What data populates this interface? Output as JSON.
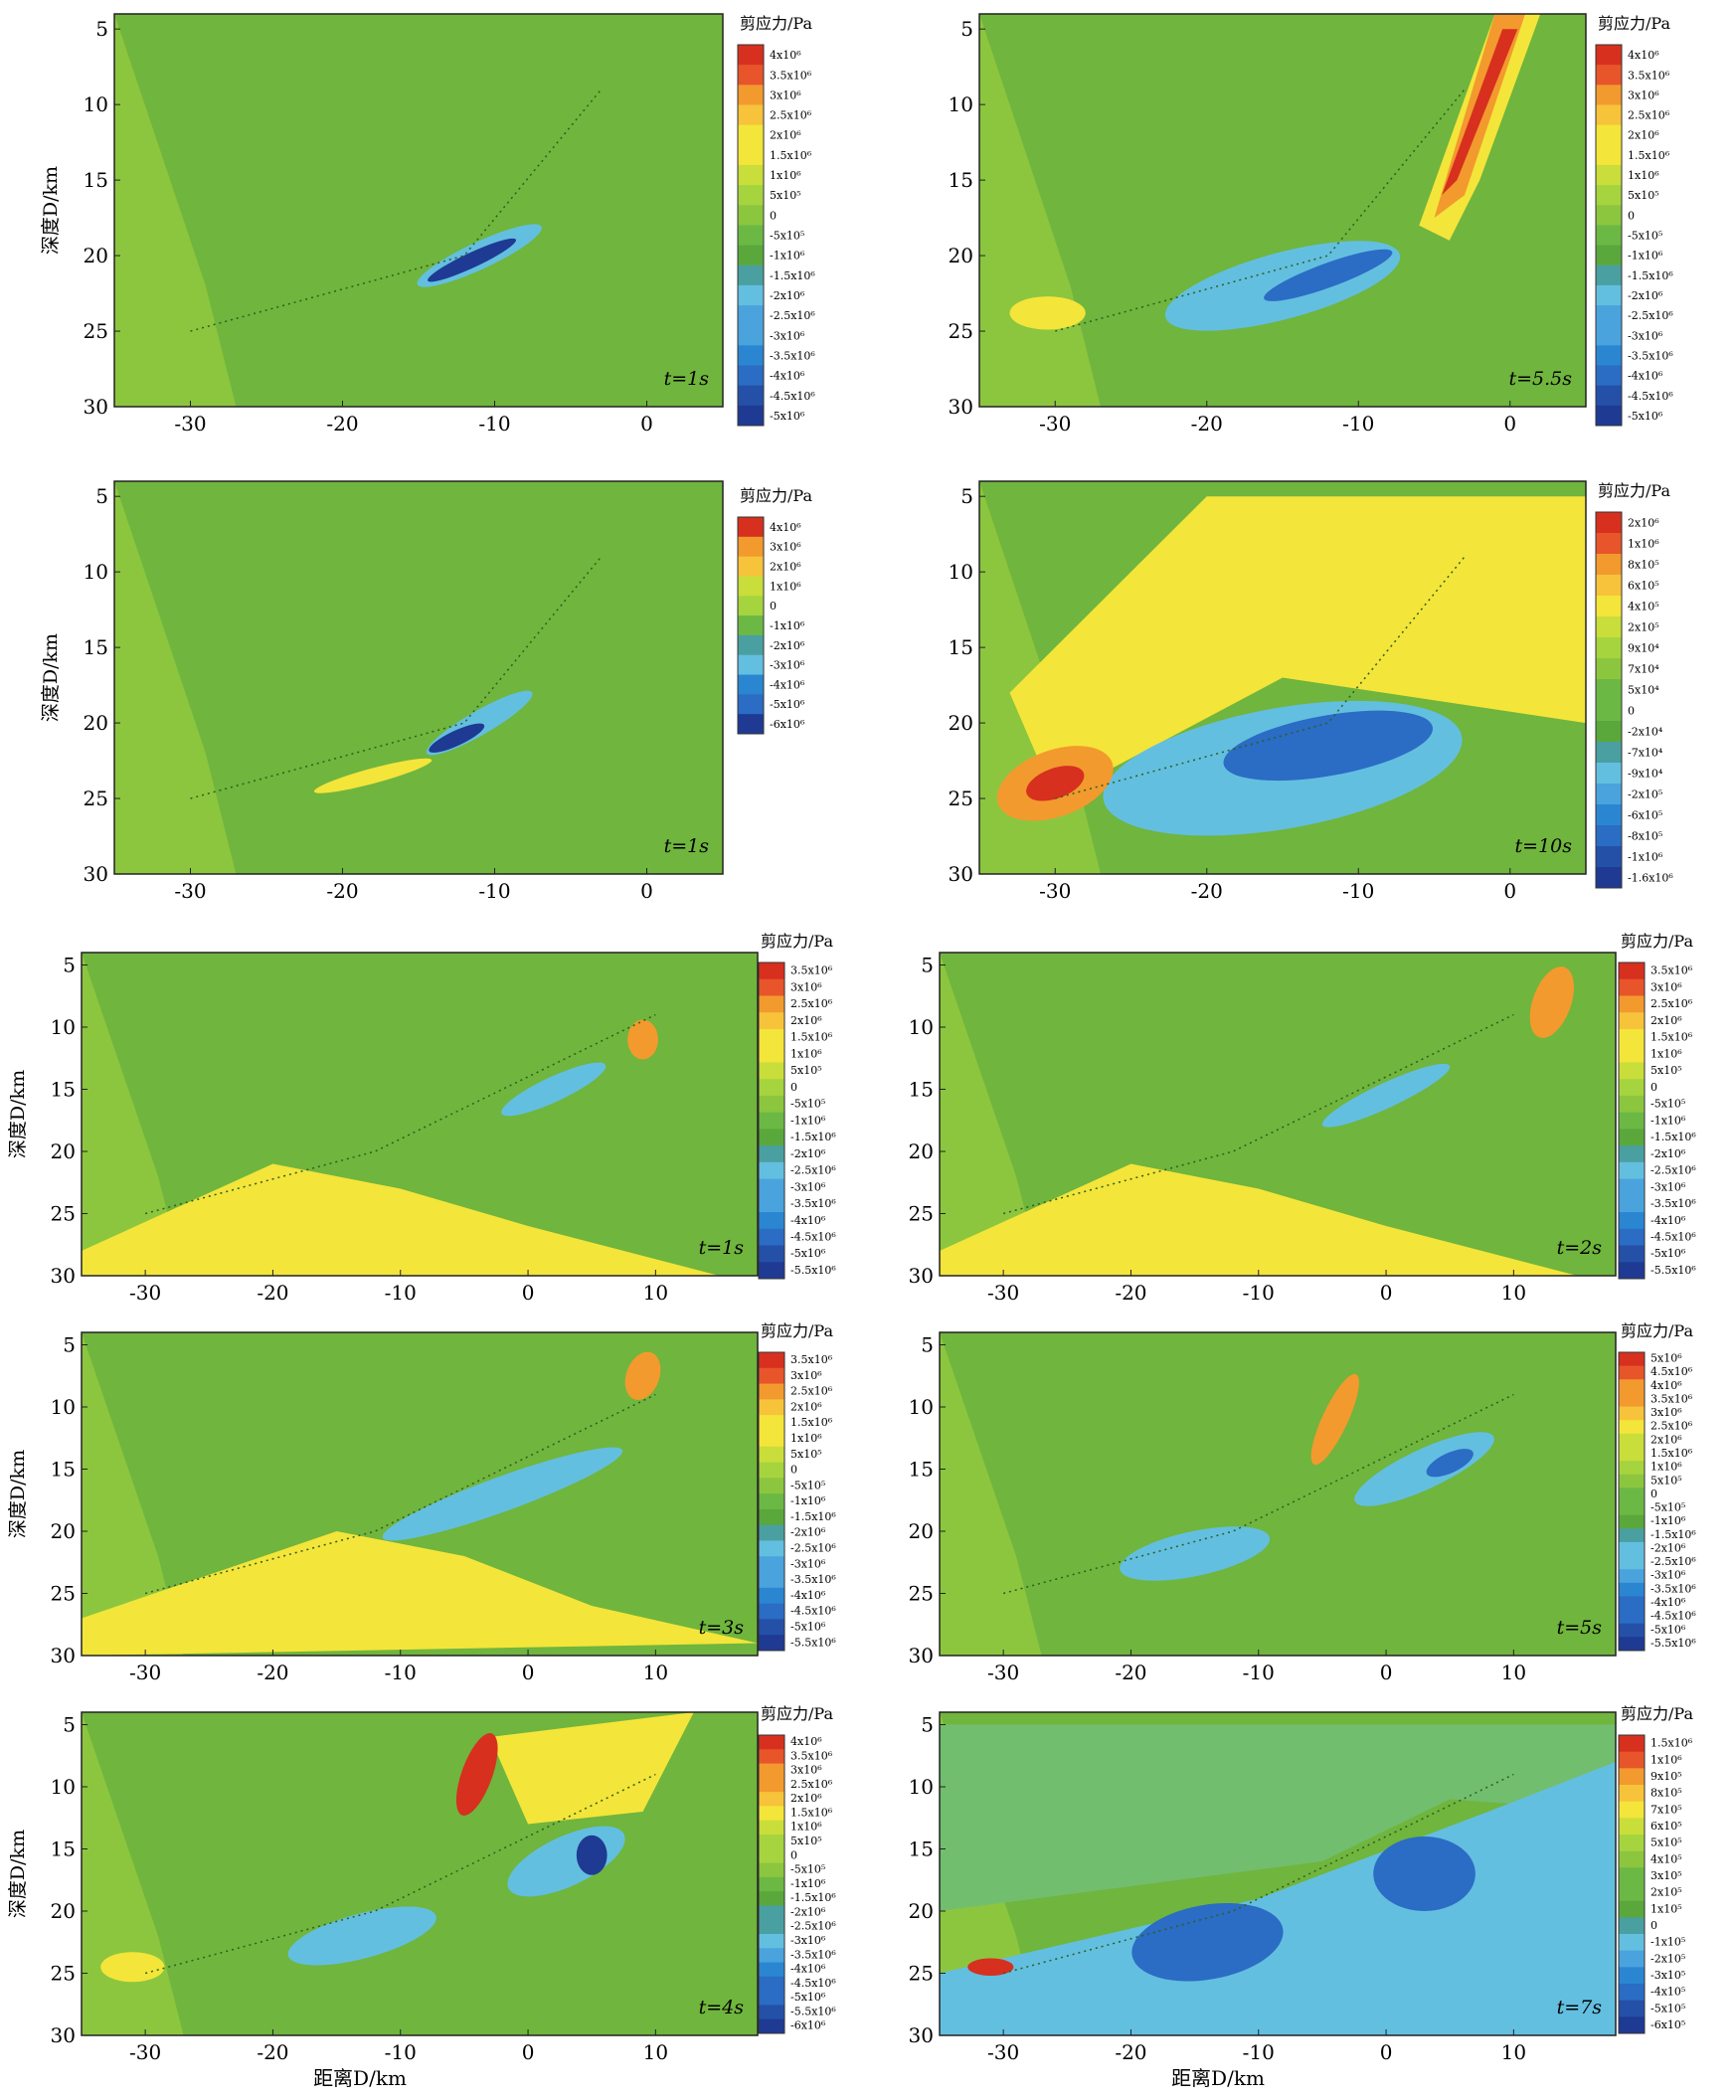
{
  "figure": {
    "title": "",
    "colorbar_title": "剪应力/Pa",
    "y_axis_label": "深度D/km",
    "x_axis_label": "距离D/km",
    "y_ticks": [
      5,
      10,
      15,
      20,
      25,
      30
    ]
  },
  "panels": [
    {
      "id": "r1-left",
      "time_label": "t=1s",
      "x_ticks": [
        -30,
        -20,
        -10,
        0
      ],
      "xlim": [
        -35,
        5
      ],
      "colorbar_labels": [
        "4x10⁶",
        "3.5x10⁶",
        "3x10⁶",
        "2.5x10⁶",
        "2x10⁶",
        "1.5x10⁶",
        "1x10⁶",
        "5x10⁵",
        "0",
        "-5x10⁵",
        "-1x10⁶",
        "-1.5x10⁶",
        "-2x10⁶",
        "-2.5x10⁶",
        "-3x10⁶",
        "-3.5x10⁶",
        "-4x10⁶",
        "-4.5x10⁶",
        "-5x10⁶"
      ]
    },
    {
      "id": "r1-right",
      "time_label": "t=5.5s",
      "x_ticks": [
        -30,
        -20,
        -10,
        0
      ],
      "xlim": [
        -35,
        5
      ],
      "colorbar_labels": [
        "4x10⁶",
        "3.5x10⁶",
        "3x10⁶",
        "2.5x10⁶",
        "2x10⁶",
        "1.5x10⁶",
        "1x10⁶",
        "5x10⁵",
        "0",
        "-5x10⁵",
        "-1x10⁶",
        "-1.5x10⁶",
        "-2x10⁶",
        "-2.5x10⁶",
        "-3x10⁶",
        "-3.5x10⁶",
        "-4x10⁶",
        "-4.5x10⁶",
        "-5x10⁶"
      ]
    },
    {
      "id": "r2-left",
      "time_label": "t=1s",
      "x_ticks": [
        -30,
        -20,
        -10,
        0
      ],
      "xlim": [
        -35,
        5
      ],
      "colorbar_labels": [
        "4x10⁶",
        "3x10⁶",
        "2x10⁶",
        "1x10⁶",
        "0",
        "-1x10⁶",
        "-2x10⁶",
        "-3x10⁶",
        "-4x10⁶",
        "-5x10⁶",
        "-6x10⁶"
      ]
    },
    {
      "id": "r2-right",
      "time_label": "t=10s",
      "x_ticks": [
        -30,
        -20,
        -10,
        0
      ],
      "xlim": [
        -35,
        5
      ],
      "colorbar_labels": [
        "2x10⁶",
        "1x10⁶",
        "8x10⁵",
        "6x10⁵",
        "4x10⁵",
        "2x10⁵",
        "9x10⁴",
        "7x10⁴",
        "5x10⁴",
        "0",
        "-2x10⁴",
        "-7x10⁴",
        "-9x10⁴",
        "-2x10⁵",
        "-6x10⁵",
        "-8x10⁵",
        "-1x10⁶",
        "-1.6x10⁶"
      ]
    },
    {
      "id": "r3-left",
      "time_label": "t=1s",
      "x_ticks": [
        -30,
        -20,
        -10,
        0,
        10
      ],
      "xlim": [
        -35,
        18
      ],
      "colorbar_labels": [
        "3.5x10⁶",
        "3x10⁶",
        "2.5x10⁶",
        "2x10⁶",
        "1.5x10⁶",
        "1x10⁶",
        "5x10⁵",
        "0",
        "-5x10⁵",
        "-1x10⁶",
        "-1.5x10⁶",
        "-2x10⁶",
        "-2.5x10⁶",
        "-3x10⁶",
        "-3.5x10⁶",
        "-4x10⁶",
        "-4.5x10⁶",
        "-5x10⁶",
        "-5.5x10⁶"
      ]
    },
    {
      "id": "r3-right",
      "time_label": "t=2s",
      "x_ticks": [
        -30,
        -20,
        -10,
        0,
        10
      ],
      "xlim": [
        -35,
        18
      ],
      "colorbar_labels": [
        "3.5x10⁶",
        "3x10⁶",
        "2.5x10⁶",
        "2x10⁶",
        "1.5x10⁶",
        "1x10⁶",
        "5x10⁵",
        "0",
        "-5x10⁵",
        "-1x10⁶",
        "-1.5x10⁶",
        "-2x10⁶",
        "-2.5x10⁶",
        "-3x10⁶",
        "-3.5x10⁶",
        "-4x10⁶",
        "-4.5x10⁶",
        "-5x10⁶",
        "-5.5x10⁶"
      ]
    },
    {
      "id": "r4-left",
      "time_label": "t=3s",
      "x_ticks": [
        -30,
        -20,
        -10,
        0,
        10
      ],
      "xlim": [
        -35,
        18
      ],
      "colorbar_labels": [
        "3.5x10⁶",
        "3x10⁶",
        "2.5x10⁶",
        "2x10⁶",
        "1.5x10⁶",
        "1x10⁶",
        "5x10⁵",
        "0",
        "-5x10⁵",
        "-1x10⁶",
        "-1.5x10⁶",
        "-2x10⁶",
        "-2.5x10⁶",
        "-3x10⁶",
        "-3.5x10⁶",
        "-4x10⁶",
        "-4.5x10⁶",
        "-5x10⁶",
        "-5.5x10⁶"
      ]
    },
    {
      "id": "r4-right",
      "time_label": "t=5s",
      "x_ticks": [
        -30,
        -20,
        -10,
        0,
        10
      ],
      "xlim": [
        -35,
        18
      ],
      "colorbar_labels": [
        "5x10⁶",
        "4.5x10⁶",
        "4x10⁶",
        "3.5x10⁶",
        "3x10⁶",
        "2.5x10⁶",
        "2x10⁶",
        "1.5x10⁶",
        "1x10⁶",
        "5x10⁵",
        "0",
        "-5x10⁵",
        "-1x10⁶",
        "-1.5x10⁶",
        "-2x10⁶",
        "-2.5x10⁶",
        "-3x10⁶",
        "-3.5x10⁶",
        "-4x10⁶",
        "-4.5x10⁶",
        "-5x10⁶",
        "-5.5x10⁶"
      ]
    },
    {
      "id": "r5-left",
      "time_label": "t=4s",
      "x_ticks": [
        -30,
        -20,
        -10,
        0,
        10
      ],
      "xlim": [
        -35,
        18
      ],
      "colorbar_labels": [
        "4x10⁶",
        "3.5x10⁶",
        "3x10⁶",
        "2.5x10⁶",
        "2x10⁶",
        "1.5x10⁶",
        "1x10⁶",
        "5x10⁵",
        "0",
        "-5x10⁵",
        "-1x10⁶",
        "-1.5x10⁶",
        "-2x10⁶",
        "-2.5x10⁶",
        "-3x10⁶",
        "-3.5x10⁶",
        "-4x10⁶",
        "-4.5x10⁶",
        "-5x10⁶",
        "-5.5x10⁶",
        "-6x10⁶"
      ]
    },
    {
      "id": "r5-right",
      "time_label": "t=7s",
      "x_ticks": [
        -30,
        -20,
        -10,
        0,
        10
      ],
      "xlim": [
        -35,
        18
      ],
      "colorbar_labels": [
        "1.5x10⁶",
        "1x10⁶",
        "9x10⁵",
        "8x10⁵",
        "7x10⁵",
        "6x10⁵",
        "5x10⁵",
        "4x10⁵",
        "3x10⁵",
        "2x10⁵",
        "1x10⁵",
        "0",
        "-1x10⁵",
        "-2x10⁵",
        "-3x10⁵",
        "-4x10⁵",
        "-5x10⁵",
        "-6x10⁵"
      ]
    }
  ],
  "colors": {
    "background_green": "#8cc63f",
    "dark_green": "#5aa83c",
    "yellow": "#f4e53a",
    "orange": "#f29a2e",
    "red": "#d7301f",
    "light_blue": "#63bfe0",
    "blue": "#2b6cc4",
    "dark_blue": "#1f3a93"
  }
}
